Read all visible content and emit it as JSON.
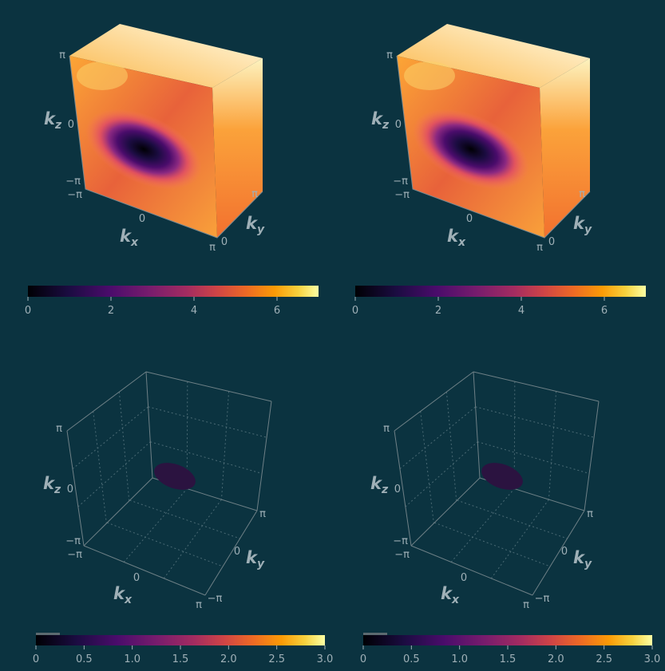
{
  "chart_data": [
    {
      "type": "volume",
      "panel": "top-left",
      "axes": {
        "x": {
          "label_main": "k",
          "label_sub": "x",
          "ticks": [
            "−π",
            "0",
            "π"
          ]
        },
        "y": {
          "label_main": "k",
          "label_sub": "y",
          "ticks": [
            "0",
            "π"
          ]
        },
        "z": {
          "label_main": "k",
          "label_sub": "z",
          "ticks": [
            "−π",
            "0",
            "π"
          ]
        }
      },
      "colorbar": {
        "ticks": [
          "0",
          "2",
          "4",
          "6"
        ],
        "range": [
          0,
          7
        ]
      },
      "colormap": [
        "#000004",
        "#3b0f70",
        "#8c2981",
        "#de4968",
        "#f8765c",
        "#fd9f3f",
        "#fcce5b",
        "#fcfdbf"
      ]
    },
    {
      "type": "volume",
      "panel": "top-right",
      "axes": {
        "x": {
          "label_main": "k",
          "label_sub": "x",
          "ticks": [
            "−π",
            "0",
            "π"
          ]
        },
        "y": {
          "label_main": "k",
          "label_sub": "y",
          "ticks": [
            "0",
            "π"
          ]
        },
        "z": {
          "label_main": "k",
          "label_sub": "z",
          "ticks": [
            "−π",
            "0",
            "π"
          ]
        }
      },
      "colorbar": {
        "ticks": [
          "0",
          "2",
          "4",
          "6"
        ],
        "range": [
          0,
          7
        ]
      },
      "colormap": [
        "#000004",
        "#3b0f70",
        "#8c2981",
        "#de4968",
        "#f8765c",
        "#fd9f3f",
        "#fcce5b",
        "#fcfdbf"
      ]
    },
    {
      "type": "isosurface",
      "panel": "bottom-left",
      "axes": {
        "x": {
          "label_main": "k",
          "label_sub": "x",
          "ticks": [
            "−π",
            "0",
            "π"
          ]
        },
        "y": {
          "label_main": "k",
          "label_sub": "y",
          "ticks": [
            "−π",
            "0",
            "π"
          ]
        },
        "z": {
          "label_main": "k",
          "label_sub": "z",
          "ticks": [
            "−π",
            "0",
            "π"
          ]
        }
      },
      "surface_color": "#2b1340",
      "colorbar": {
        "ticks": [
          "0",
          "0.5",
          "1.0",
          "1.5",
          "2.0",
          "2.5",
          "3.0"
        ],
        "range": [
          0,
          3
        ]
      },
      "colormap": [
        "#000004",
        "#3b0f70",
        "#8c2981",
        "#de4968",
        "#f8765c",
        "#fd9f3f",
        "#fcce5b",
        "#fcfdbf"
      ]
    },
    {
      "type": "isosurface",
      "panel": "bottom-right",
      "axes": {
        "x": {
          "label_main": "k",
          "label_sub": "x",
          "ticks": [
            "−π",
            "0",
            "π"
          ]
        },
        "y": {
          "label_main": "k",
          "label_sub": "y",
          "ticks": [
            "−π",
            "0",
            "π"
          ]
        },
        "z": {
          "label_main": "k",
          "label_sub": "z",
          "ticks": [
            "−π",
            "0",
            "π"
          ]
        }
      },
      "surface_color": "#2b1340",
      "colorbar": {
        "ticks": [
          "0",
          "0.5",
          "1.0",
          "1.5",
          "2.0",
          "2.5",
          "3.0"
        ],
        "range": [
          0,
          3
        ]
      },
      "colormap": [
        "#000004",
        "#3b0f70",
        "#8c2981",
        "#de4968",
        "#f8765c",
        "#fd9f3f",
        "#fcce5b",
        "#fcfdbf"
      ]
    }
  ]
}
